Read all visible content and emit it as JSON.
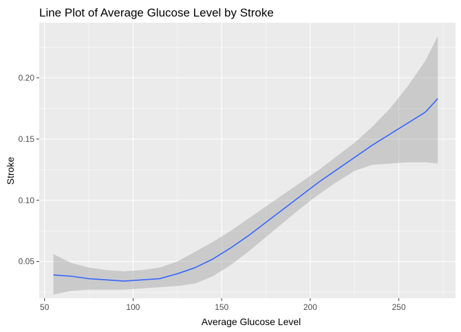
{
  "chart_data": {
    "type": "line",
    "title": "Line Plot of Average Glucose Level by Stroke",
    "xlabel": "Average Glucose Level",
    "ylabel": "Stroke",
    "xlim": [
      47,
      282
    ],
    "ylim": [
      0.02,
      0.245
    ],
    "x_ticks": [
      50,
      100,
      150,
      200,
      250
    ],
    "y_ticks": [
      0.05,
      0.1,
      0.15,
      0.2
    ],
    "x_tick_labels": [
      "50",
      "100",
      "150",
      "200",
      "250"
    ],
    "y_tick_labels": [
      "0.05",
      "0.10",
      "0.15",
      "0.20"
    ],
    "grid": true,
    "colors": {
      "line": "#3366ff",
      "band": "#999999",
      "panel": "#ebebeb"
    },
    "series": [
      {
        "x": [
          55,
          65,
          75,
          85,
          95,
          105,
          115,
          125,
          135,
          145,
          155,
          165,
          175,
          185,
          195,
          205,
          215,
          225,
          235,
          245,
          255,
          265,
          272
        ],
        "y": [
          0.039,
          0.038,
          0.036,
          0.035,
          0.034,
          0.035,
          0.036,
          0.04,
          0.045,
          0.052,
          0.061,
          0.071,
          0.082,
          0.093,
          0.104,
          0.115,
          0.125,
          0.135,
          0.145,
          0.154,
          0.163,
          0.172,
          0.183
        ],
        "lower": [
          0.023,
          0.026,
          0.027,
          0.027,
          0.027,
          0.028,
          0.029,
          0.03,
          0.032,
          0.038,
          0.047,
          0.058,
          0.07,
          0.082,
          0.094,
          0.105,
          0.115,
          0.124,
          0.129,
          0.13,
          0.131,
          0.131,
          0.13
        ],
        "upper": [
          0.056,
          0.049,
          0.045,
          0.043,
          0.042,
          0.043,
          0.045,
          0.05,
          0.058,
          0.066,
          0.075,
          0.085,
          0.095,
          0.105,
          0.115,
          0.125,
          0.136,
          0.147,
          0.16,
          0.175,
          0.193,
          0.214,
          0.234
        ]
      }
    ]
  }
}
